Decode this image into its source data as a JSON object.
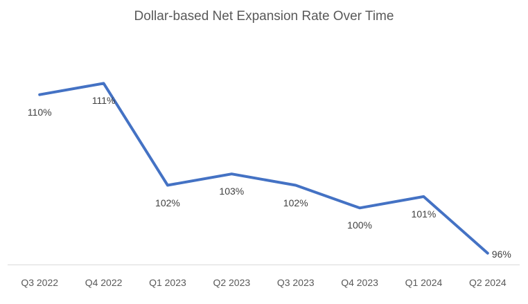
{
  "chart_data": {
    "type": "line",
    "title": "Dollar-based Net Expansion Rate Over Time",
    "categories": [
      "Q3 2022",
      "Q4 2022",
      "Q1 2023",
      "Q2 2023",
      "Q3 2023",
      "Q4 2023",
      "Q1 2024",
      "Q2 2024"
    ],
    "values": [
      110,
      111,
      102,
      103,
      102,
      100,
      101,
      96
    ],
    "data_labels": [
      "110%",
      "111%",
      "102%",
      "103%",
      "102%",
      "100%",
      "101%",
      "96%"
    ],
    "label_positions": [
      "below",
      "below",
      "below",
      "below",
      "below",
      "below",
      "below",
      "right"
    ],
    "xlabel": "",
    "ylabel": "",
    "ylim": [
      95,
      115
    ],
    "grid": false,
    "legend": "none",
    "colors": {
      "line": "#4472C4",
      "title_text": "#595959",
      "data_label_text": "#404040",
      "axis_label_text": "#595959",
      "axis_line": "#D9D9D9",
      "background": "#FFFFFF"
    }
  }
}
